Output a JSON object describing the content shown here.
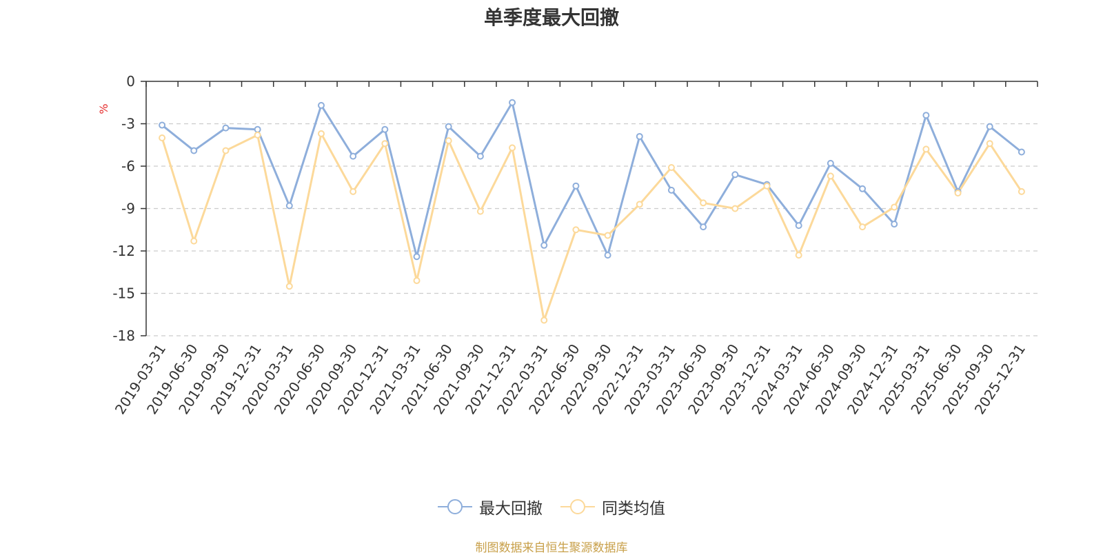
{
  "chart_data": {
    "type": "line",
    "title": "单季度最大回撤",
    "ylabel": "%",
    "ylim": [
      -18,
      0
    ],
    "yticks": [
      0,
      -3,
      -6,
      -9,
      -12,
      -15,
      -18
    ],
    "grid": true,
    "legend_position": "bottom-center",
    "categories": [
      "2019-03-31",
      "2019-06-30",
      "2019-09-30",
      "2019-12-31",
      "2020-03-31",
      "2020-06-30",
      "2020-09-30",
      "2020-12-31",
      "2021-03-31",
      "2021-06-30",
      "2021-09-30",
      "2021-12-31",
      "2022-03-31",
      "2022-06-30",
      "2022-09-30",
      "2022-12-31",
      "2023-03-31",
      "2023-06-30",
      "2023-09-30",
      "2023-12-31",
      "2024-03-31",
      "2024-06-30",
      "2024-09-30",
      "2024-12-31",
      "2025-03-31",
      "2025-06-30",
      "2025-09-30",
      "2025-12-31"
    ],
    "series": [
      {
        "name": "最大回撤",
        "color": "#8eaedb",
        "values": [
          -3.1,
          -4.9,
          -3.3,
          -3.4,
          -8.8,
          -1.7,
          -5.3,
          -3.4,
          -12.4,
          -3.2,
          -5.3,
          -1.5,
          -11.6,
          -7.4,
          -12.3,
          -3.9,
          -7.7,
          -10.3,
          -6.6,
          -7.3,
          -10.2,
          -5.8,
          -7.6,
          -10.1,
          -2.4,
          -7.8,
          -3.2,
          -5.0
        ]
      },
      {
        "name": "同类均值",
        "color": "#fcd99a",
        "values": [
          -4.0,
          -11.3,
          -4.9,
          -3.8,
          -14.5,
          -3.7,
          -7.8,
          -4.4,
          -14.1,
          -4.2,
          -9.2,
          -4.7,
          -16.9,
          -10.5,
          -10.9,
          -8.7,
          -6.1,
          -8.6,
          -9.0,
          -7.4,
          -12.3,
          -6.7,
          -10.3,
          -8.9,
          -4.8,
          -7.9,
          -4.4,
          -7.8
        ]
      }
    ]
  },
  "footer": {
    "source": "制图数据来自恒生聚源数据库"
  }
}
